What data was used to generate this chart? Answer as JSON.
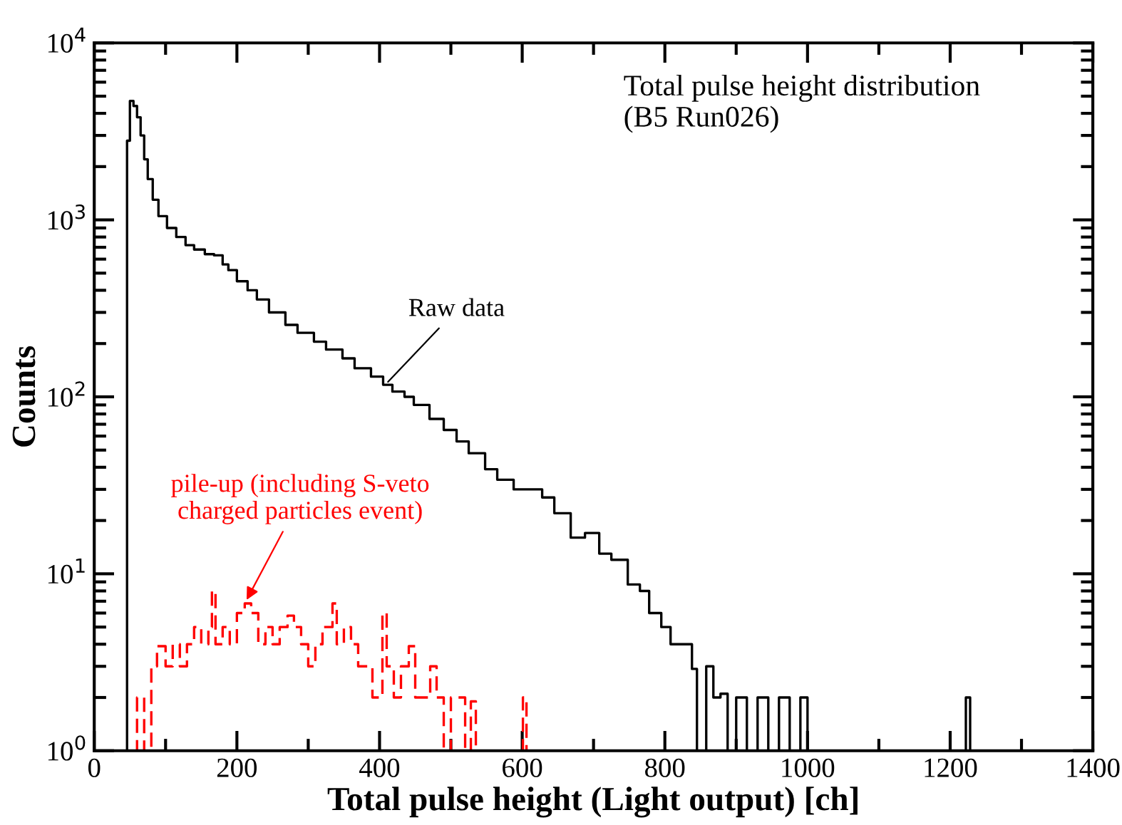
{
  "chart_data": {
    "type": "step",
    "title": "Total pulse height distribution\n(B5 Run026)",
    "xlabel": "Total pulse height (Light output) [ch]",
    "ylabel": "Counts",
    "log": "y",
    "xlim": [
      0,
      1400
    ],
    "ylim": [
      1,
      10000
    ],
    "xticks": [
      0,
      200,
      400,
      600,
      800,
      1000,
      1200,
      1400
    ],
    "yticks": [
      {
        "value": 1,
        "label": "10$^{0}$"
      },
      {
        "value": 10,
        "label": "10$^{1}$"
      },
      {
        "value": 100,
        "label": "10$^{2}$"
      },
      {
        "value": 1000,
        "label": "10$^{3}$"
      },
      {
        "value": 10000,
        "label": "10$^{4}$"
      }
    ],
    "grid": false,
    "legend": false,
    "series": [
      {
        "color": "#000000",
        "line_style": "solid",
        "x": [
          40,
          46,
          50,
          55,
          60,
          65,
          70,
          75,
          82,
          90,
          102,
          115,
          128,
          140,
          155,
          168,
          180,
          188,
          200,
          215,
          228,
          245,
          268,
          285,
          308,
          325,
          348,
          365,
          388,
          405,
          418,
          435,
          448,
          470,
          490,
          508,
          525,
          548,
          565,
          588,
          605,
          628,
          645,
          668,
          688,
          708,
          725,
          748,
          765,
          778,
          795,
          808,
          822,
          838,
          845,
          858,
          868,
          878,
          888,
          900,
          915,
          930,
          945,
          960,
          975,
          990,
          1000,
          1010,
          1215,
          1222,
          1228
        ],
        "values": [
          1,
          2800,
          4700,
          4400,
          3800,
          3000,
          2200,
          1700,
          1300,
          1050,
          900,
          800,
          720,
          680,
          640,
          630,
          560,
          520,
          450,
          400,
          355,
          300,
          255,
          230,
          205,
          185,
          165,
          145,
          130,
          117,
          107,
          100,
          90,
          75,
          65,
          56,
          48,
          39,
          34,
          30,
          30,
          27,
          22,
          16,
          17,
          13,
          12,
          8.7,
          8,
          6,
          5,
          4,
          4,
          2.9,
          1,
          3,
          2,
          2.1,
          1,
          2,
          1,
          2,
          1,
          2,
          1,
          2,
          1,
          1,
          1,
          2,
          1
        ]
      },
      {
        "color": "#ff0000",
        "line_style": "dashed",
        "x": [
          55,
          60,
          70,
          80,
          88,
          100,
          110,
          120,
          130,
          140,
          150,
          160,
          165,
          170,
          180,
          190,
          200,
          211,
          220,
          230,
          240,
          250,
          260,
          271,
          280,
          290,
          300,
          310,
          320,
          334,
          340,
          350,
          360,
          370,
          380,
          390,
          404,
          410,
          420,
          430,
          441,
          450,
          460,
          471,
          480,
          490,
          500,
          510,
          520,
          528,
          535,
          595,
          601,
          606
        ],
        "values": [
          1,
          2,
          1,
          3,
          3.9,
          3,
          4,
          3,
          4,
          5,
          4,
          5,
          8,
          4,
          5,
          4,
          6,
          6.8,
          6,
          4,
          5,
          4,
          5,
          5.8,
          5,
          4,
          3,
          4,
          5,
          6.8,
          4,
          5,
          4,
          3,
          3,
          2,
          6,
          3,
          2,
          3,
          3.9,
          2,
          2,
          3,
          2,
          1,
          2,
          2,
          1,
          1.9,
          1,
          1,
          2,
          1
        ]
      }
    ],
    "annotations": [
      {
        "text": "Raw data",
        "x": 408,
        "y": 117
      },
      {
        "text": "pile-up (including S-veto\ncharged particles event)",
        "x": 211,
        "y": 6.8
      }
    ]
  }
}
